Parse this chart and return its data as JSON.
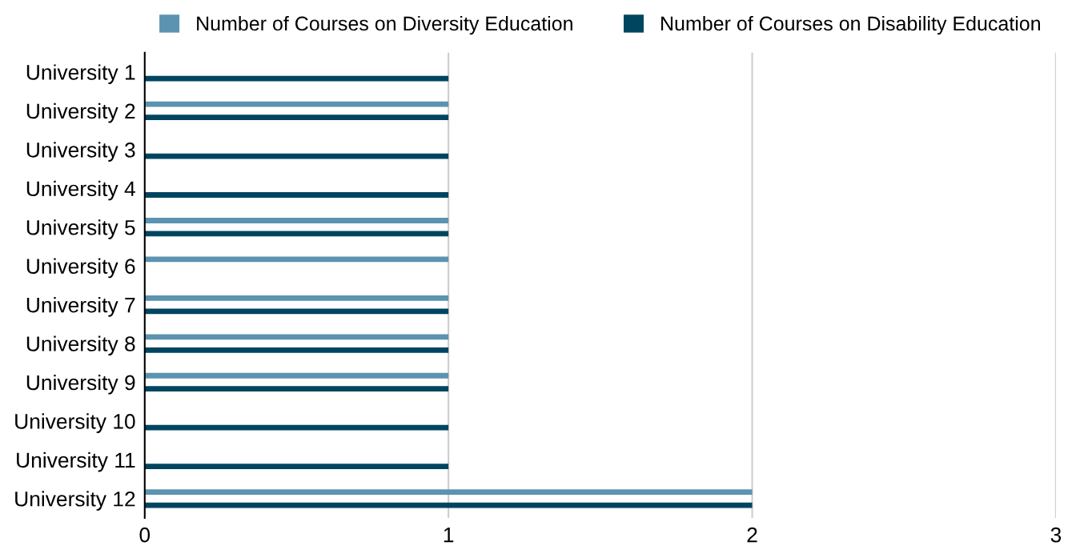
{
  "chart_data": {
    "type": "bar",
    "orientation": "horizontal",
    "categories": [
      "University 1",
      "University 2",
      "University 3",
      "University 4",
      "University 5",
      "University 6",
      "University 7",
      "University 8",
      "University 9",
      "University 10",
      "University 11",
      "University 12"
    ],
    "series": [
      {
        "name": "Number of Courses on Diversity Education",
        "color": "#5b93b0",
        "values": [
          0,
          1,
          0,
          0,
          1,
          1,
          1,
          1,
          1,
          0,
          0,
          2
        ]
      },
      {
        "name": "Number of Courses on Disability Education",
        "color": "#004560",
        "values": [
          1,
          1,
          1,
          1,
          1,
          0,
          1,
          1,
          1,
          1,
          1,
          2
        ]
      }
    ],
    "xlim": [
      0,
      3
    ],
    "xticks": [
      0,
      1,
      2,
      3
    ],
    "grid": "x",
    "legend": "top"
  }
}
